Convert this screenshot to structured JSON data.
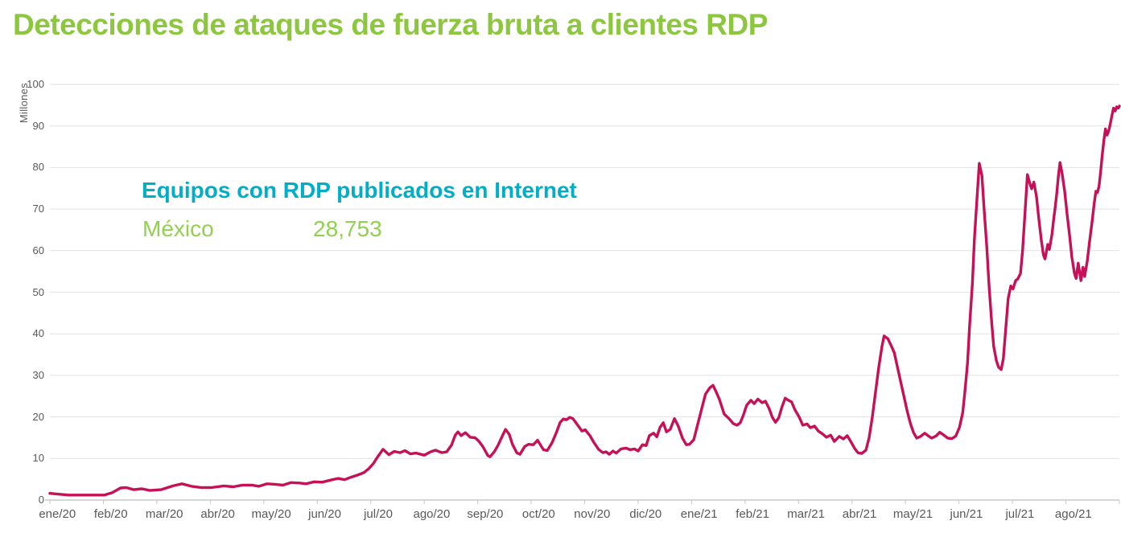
{
  "page": {
    "title": "Detecciones de ataques de fuerza bruta a clientes RDP"
  },
  "annotation": {
    "heading": "Equipos con RDP publicados en Internet",
    "country": "México",
    "value": "28,753"
  },
  "colors": {
    "title_green": "#8DC63F",
    "value_green": "#92D050",
    "accent_cyan": "#00AEC7",
    "line_crimson": "#C61058",
    "axis_text_gray": "#595959",
    "gridline_gray": "#E2E2E2",
    "axis_line_gray": "#C9C9C9"
  },
  "chart_data": {
    "type": "line",
    "title": "Detecciones de ataques de fuerza bruta a clientes RDP",
    "xlabel": "",
    "ylabel": "Millones",
    "ylim": [
      0,
      100
    ],
    "y_ticks": [
      0,
      10,
      20,
      30,
      40,
      50,
      60,
      70,
      80,
      90,
      100
    ],
    "x_tick_labels": [
      "ene/20",
      "feb/20",
      "mar/20",
      "abr/20",
      "may/20",
      "jun/20",
      "jul/20",
      "ago/20",
      "sep/20",
      "oct/20",
      "nov/20",
      "dic/20",
      "ene/21",
      "feb/21",
      "mar/21",
      "abr/21",
      "may/21",
      "jun/21",
      "jul/21",
      "ago/21"
    ],
    "x_unit": "months since ene/20 (0 = axis origin, 20 = right edge)",
    "grid": "horizontal",
    "legend": "none",
    "line_color": "#C61058",
    "series": [
      {
        "name": "Detecciones de ataques de fuerza bruta (millones)",
        "points": [
          [
            0,
            1.6
          ],
          [
            0.35,
            1.2
          ],
          [
            0.72,
            1.2
          ],
          [
            1.02,
            1.2
          ],
          [
            1.17,
            1.8
          ],
          [
            1.32,
            2.9
          ],
          [
            1.43,
            3
          ],
          [
            1.57,
            2.5
          ],
          [
            1.72,
            2.7
          ],
          [
            1.87,
            2.3
          ],
          [
            2.08,
            2.5
          ],
          [
            2.3,
            3.4
          ],
          [
            2.47,
            3.9
          ],
          [
            2.65,
            3.3
          ],
          [
            2.83,
            3
          ],
          [
            3.02,
            3
          ],
          [
            3.25,
            3.4
          ],
          [
            3.43,
            3.2
          ],
          [
            3.6,
            3.6
          ],
          [
            3.78,
            3.6
          ],
          [
            3.91,
            3.3
          ],
          [
            4.06,
            3.9
          ],
          [
            4.21,
            3.8
          ],
          [
            4.36,
            3.6
          ],
          [
            4.51,
            4.2
          ],
          [
            4.67,
            4.1
          ],
          [
            4.79,
            3.9
          ],
          [
            4.94,
            4.4
          ],
          [
            5.09,
            4.3
          ],
          [
            5.19,
            4.6
          ],
          [
            5.28,
            4.9
          ],
          [
            5.39,
            5.2
          ],
          [
            5.51,
            4.9
          ],
          [
            5.63,
            5.5
          ],
          [
            5.75,
            6
          ],
          [
            5.87,
            6.6
          ],
          [
            5.96,
            7.5
          ],
          [
            6.05,
            8.8
          ],
          [
            6.14,
            10.6
          ],
          [
            6.23,
            12.2
          ],
          [
            6.34,
            10.9
          ],
          [
            6.44,
            11.7
          ],
          [
            6.55,
            11.4
          ],
          [
            6.64,
            11.9
          ],
          [
            6.74,
            11.1
          ],
          [
            6.85,
            11.3
          ],
          [
            7,
            10.8
          ],
          [
            7.12,
            11.6
          ],
          [
            7.21,
            12
          ],
          [
            7.33,
            11.4
          ],
          [
            7.42,
            11.6
          ],
          [
            7.51,
            13.2
          ],
          [
            7.58,
            15.6
          ],
          [
            7.63,
            16.4
          ],
          [
            7.69,
            15.5
          ],
          [
            7.77,
            16.2
          ],
          [
            7.86,
            15.1
          ],
          [
            7.95,
            15
          ],
          [
            8.02,
            14.2
          ],
          [
            8.1,
            12.8
          ],
          [
            8.19,
            10.7
          ],
          [
            8.23,
            10.4
          ],
          [
            8.31,
            11.6
          ],
          [
            8.38,
            13.2
          ],
          [
            8.46,
            15.4
          ],
          [
            8.52,
            17
          ],
          [
            8.59,
            15.8
          ],
          [
            8.65,
            13.4
          ],
          [
            8.73,
            11.4
          ],
          [
            8.79,
            11
          ],
          [
            8.88,
            12.9
          ],
          [
            8.95,
            13.4
          ],
          [
            9.04,
            13.3
          ],
          [
            9.12,
            14.4
          ],
          [
            9.23,
            12.1
          ],
          [
            9.3,
            11.9
          ],
          [
            9.39,
            13.8
          ],
          [
            9.47,
            16.2
          ],
          [
            9.54,
            18.6
          ],
          [
            9.6,
            19.5
          ],
          [
            9.66,
            19.3
          ],
          [
            9.72,
            19.9
          ],
          [
            9.78,
            19.6
          ],
          [
            9.87,
            18
          ],
          [
            9.95,
            16.6
          ],
          [
            10.01,
            16.9
          ],
          [
            10.1,
            15.5
          ],
          [
            10.17,
            13.9
          ],
          [
            10.26,
            12.2
          ],
          [
            10.34,
            11.4
          ],
          [
            10.4,
            11.6
          ],
          [
            10.46,
            11
          ],
          [
            10.53,
            11.8
          ],
          [
            10.59,
            11.3
          ],
          [
            10.68,
            12.3
          ],
          [
            10.77,
            12.5
          ],
          [
            10.85,
            12.1
          ],
          [
            10.93,
            12.3
          ],
          [
            11,
            11.8
          ],
          [
            11.08,
            13.3
          ],
          [
            11.15,
            13.1
          ],
          [
            11.21,
            15.5
          ],
          [
            11.29,
            16.1
          ],
          [
            11.35,
            15.2
          ],
          [
            11.41,
            17.5
          ],
          [
            11.47,
            18.6
          ],
          [
            11.53,
            16.4
          ],
          [
            11.6,
            17
          ],
          [
            11.68,
            19.6
          ],
          [
            11.75,
            17.8
          ],
          [
            11.83,
            14.9
          ],
          [
            11.9,
            13.3
          ],
          [
            11.96,
            13.4
          ],
          [
            12.04,
            14.5
          ],
          [
            12.11,
            18
          ],
          [
            12.19,
            22
          ],
          [
            12.26,
            25.5
          ],
          [
            12.34,
            27
          ],
          [
            12.4,
            27.6
          ],
          [
            12.46,
            26
          ],
          [
            12.52,
            24.2
          ],
          [
            12.61,
            20.7
          ],
          [
            12.7,
            19.6
          ],
          [
            12.78,
            18.4
          ],
          [
            12.85,
            18
          ],
          [
            12.91,
            18.6
          ],
          [
            12.97,
            20.5
          ],
          [
            13.03,
            22.8
          ],
          [
            13.11,
            24
          ],
          [
            13.17,
            23.2
          ],
          [
            13.24,
            24.3
          ],
          [
            13.32,
            23.4
          ],
          [
            13.38,
            23.8
          ],
          [
            13.45,
            22
          ],
          [
            13.51,
            19.9
          ],
          [
            13.57,
            18.7
          ],
          [
            13.63,
            19.8
          ],
          [
            13.69,
            22.4
          ],
          [
            13.75,
            24.5
          ],
          [
            13.81,
            24
          ],
          [
            13.87,
            23.6
          ],
          [
            13.93,
            21.8
          ],
          [
            14.01,
            20
          ],
          [
            14.08,
            18
          ],
          [
            14.16,
            18.3
          ],
          [
            14.22,
            17.4
          ],
          [
            14.3,
            17.8
          ],
          [
            14.37,
            16.6
          ],
          [
            14.45,
            15.9
          ],
          [
            14.52,
            15.1
          ],
          [
            14.6,
            15.6
          ],
          [
            14.67,
            14.1
          ],
          [
            14.76,
            15.3
          ],
          [
            14.84,
            14.7
          ],
          [
            14.91,
            15.5
          ],
          [
            14.99,
            13.8
          ],
          [
            15.05,
            12.4
          ],
          [
            15.11,
            11.4
          ],
          [
            15.18,
            11.2
          ],
          [
            15.26,
            12
          ],
          [
            15.32,
            15
          ],
          [
            15.38,
            20
          ],
          [
            15.44,
            26
          ],
          [
            15.5,
            32
          ],
          [
            15.56,
            37
          ],
          [
            15.6,
            39.5
          ],
          [
            15.67,
            38.8
          ],
          [
            15.73,
            37.2
          ],
          [
            15.79,
            35.5
          ],
          [
            15.85,
            32
          ],
          [
            15.91,
            28.5
          ],
          [
            15.97,
            25
          ],
          [
            16.03,
            21.5
          ],
          [
            16.09,
            18.5
          ],
          [
            16.15,
            16.2
          ],
          [
            16.21,
            14.9
          ],
          [
            16.28,
            15.3
          ],
          [
            16.36,
            16.1
          ],
          [
            16.43,
            15.4
          ],
          [
            16.49,
            14.9
          ],
          [
            16.57,
            15.4
          ],
          [
            16.64,
            16.3
          ],
          [
            16.72,
            15.6
          ],
          [
            16.79,
            14.9
          ],
          [
            16.87,
            14.8
          ],
          [
            16.94,
            15.4
          ],
          [
            17.01,
            17.5
          ],
          [
            17.07,
            21
          ],
          [
            17.11,
            26
          ],
          [
            17.16,
            33
          ],
          [
            17.2,
            42
          ],
          [
            17.25,
            52
          ],
          [
            17.29,
            63
          ],
          [
            17.34,
            73
          ],
          [
            17.38,
            81
          ],
          [
            17.43,
            78
          ],
          [
            17.47,
            70
          ],
          [
            17.52,
            61
          ],
          [
            17.56,
            52
          ],
          [
            17.61,
            43
          ],
          [
            17.65,
            37
          ],
          [
            17.7,
            33.5
          ],
          [
            17.74,
            32
          ],
          [
            17.79,
            31.4
          ],
          [
            17.83,
            34
          ],
          [
            17.88,
            42
          ],
          [
            17.92,
            48.5
          ],
          [
            17.97,
            51.5
          ],
          [
            18.01,
            50.8
          ],
          [
            18.06,
            52.8
          ],
          [
            18.1,
            53.2
          ],
          [
            18.15,
            54.5
          ],
          [
            18.19,
            60
          ],
          [
            18.24,
            70
          ],
          [
            18.28,
            78.3
          ],
          [
            18.33,
            76
          ],
          [
            18.36,
            74.9
          ],
          [
            18.4,
            76.5
          ],
          [
            18.45,
            73
          ],
          [
            18.49,
            68
          ],
          [
            18.54,
            62.5
          ],
          [
            18.58,
            59
          ],
          [
            18.61,
            58
          ],
          [
            18.66,
            61.5
          ],
          [
            18.69,
            60.3
          ],
          [
            18.74,
            64
          ],
          [
            18.77,
            67.5
          ],
          [
            18.8,
            70.5
          ],
          [
            18.83,
            74
          ],
          [
            18.86,
            78
          ],
          [
            18.89,
            81.2
          ],
          [
            18.93,
            78.5
          ],
          [
            18.98,
            74
          ],
          [
            19.02,
            69
          ],
          [
            19.07,
            63.5
          ],
          [
            19.11,
            58.5
          ],
          [
            19.16,
            54.5
          ],
          [
            19.19,
            53.3
          ],
          [
            19.23,
            57
          ],
          [
            19.28,
            52.8
          ],
          [
            19.32,
            56
          ],
          [
            19.35,
            53.8
          ],
          [
            19.4,
            57.5
          ],
          [
            19.44,
            62
          ],
          [
            19.49,
            67
          ],
          [
            19.53,
            71.5
          ],
          [
            19.56,
            74.3
          ],
          [
            19.59,
            74
          ],
          [
            19.62,
            75.5
          ],
          [
            19.65,
            79
          ],
          [
            19.68,
            83
          ],
          [
            19.71,
            86.5
          ],
          [
            19.74,
            89.3
          ],
          [
            19.77,
            87.8
          ],
          [
            19.8,
            88.8
          ],
          [
            19.83,
            90.5
          ],
          [
            19.86,
            92.5
          ],
          [
            19.89,
            94.3
          ],
          [
            19.92,
            93.6
          ],
          [
            19.95,
            94.6
          ],
          [
            19.98,
            94.3
          ],
          [
            20,
            94.8
          ]
        ]
      }
    ]
  }
}
